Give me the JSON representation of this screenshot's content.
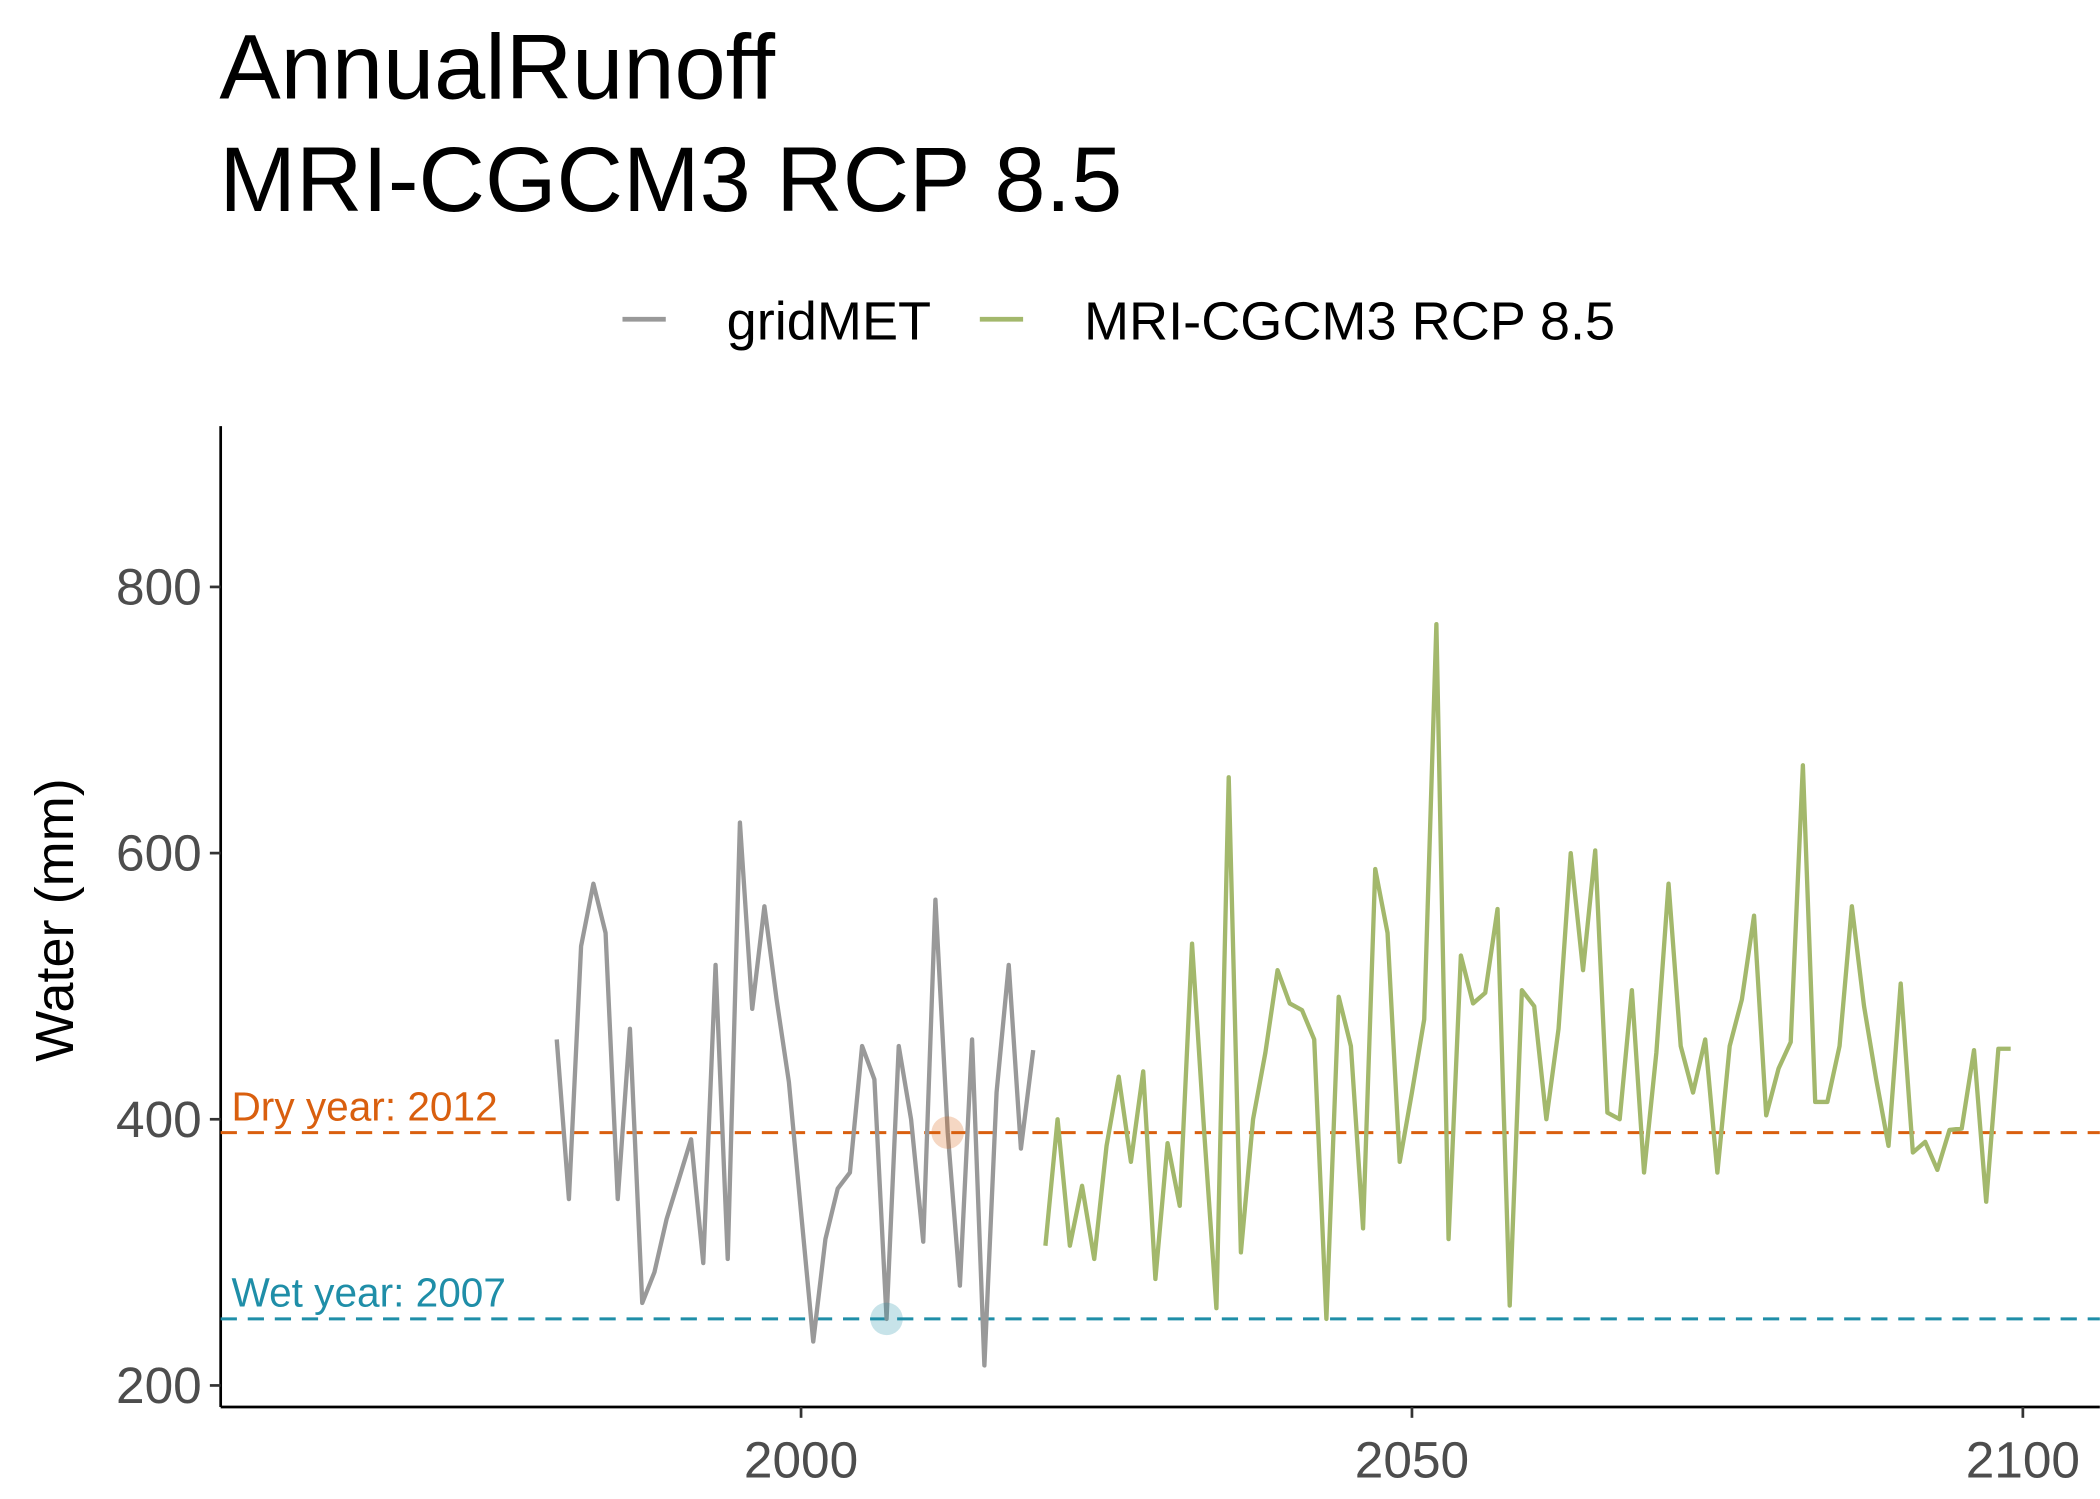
{
  "chart_data": {
    "type": "line",
    "title": [
      "AnnualRunoff",
      "MRI-CGCM3 RCP 8.5"
    ],
    "y_label": "Water (mm)",
    "xlim": [
      1952.5,
      2106.3
    ],
    "xticks": [
      2000,
      2050,
      2100
    ],
    "ylim": [
      183.8,
      920.8
    ],
    "yticks": [
      200,
      400,
      600,
      800
    ],
    "series": [
      {
        "name": "gridMET",
        "color": "#999999",
        "x": [
          1980,
          1981,
          1982,
          1983,
          1984,
          1985,
          1986,
          1987,
          1988,
          1989,
          1990,
          1991,
          1992,
          1993,
          1994,
          1995,
          1996,
          1997,
          1998,
          1999,
          2000,
          2001,
          2002,
          2003,
          2004,
          2005,
          2006,
          2007,
          2008,
          2009,
          2010,
          2011,
          2012,
          2013,
          2014,
          2015,
          2016,
          2017,
          2018,
          2019
        ],
        "values": [
          460,
          340,
          530,
          577,
          540,
          340,
          468,
          262,
          285,
          325,
          355,
          385,
          292,
          516,
          295,
          623,
          483,
          560,
          490,
          428,
          330,
          233,
          310,
          348,
          360,
          455,
          430,
          250,
          455,
          400,
          308,
          565,
          390,
          275,
          460,
          215,
          420,
          516,
          378,
          452
        ]
      },
      {
        "name": "MRI-CGCM3 RCP 8.5",
        "color": "#a3b86c",
        "x": [
          2020,
          2021,
          2022,
          2023,
          2024,
          2025,
          2026,
          2027,
          2028,
          2029,
          2030,
          2031,
          2032,
          2033,
          2034,
          2035,
          2036,
          2037,
          2038,
          2039,
          2040,
          2041,
          2042,
          2043,
          2044,
          2045,
          2046,
          2047,
          2048,
          2049,
          2050,
          2051,
          2052,
          2053,
          2054,
          2055,
          2056,
          2057,
          2058,
          2059,
          2060,
          2061,
          2062,
          2063,
          2064,
          2065,
          2066,
          2067,
          2068,
          2069,
          2070,
          2071,
          2072,
          2073,
          2074,
          2075,
          2076,
          2077,
          2078,
          2079,
          2080,
          2081,
          2082,
          2083,
          2084,
          2085,
          2086,
          2087,
          2088,
          2089,
          2090,
          2091,
          2092,
          2093,
          2094,
          2095,
          2096,
          2097,
          2098,
          2099
        ],
        "values": [
          305,
          400,
          305,
          350,
          295,
          380,
          432,
          368,
          436,
          280,
          382,
          335,
          532,
          390,
          258,
          657,
          300,
          400,
          450,
          512,
          487,
          482,
          460,
          250,
          492,
          455,
          318,
          588,
          540,
          368,
          420,
          475,
          772,
          310,
          523,
          487,
          495,
          558,
          260,
          497,
          485,
          400,
          468,
          600,
          512,
          602,
          405,
          400,
          497,
          360,
          450,
          577,
          455,
          420,
          460,
          360,
          455,
          490,
          553,
          403,
          438,
          458,
          666,
          413,
          413,
          455,
          560,
          485,
          430,
          380,
          502,
          375,
          383,
          362,
          392,
          393,
          452,
          338,
          453,
          453
        ]
      }
    ],
    "reference_lines": [
      {
        "label": "Dry year: 2012",
        "value": 390,
        "x": 2012,
        "color": "#d95f0e"
      },
      {
        "label": "Wet year: 2007",
        "value": 250,
        "x": 2007,
        "color": "#1f8ea8"
      }
    ]
  }
}
